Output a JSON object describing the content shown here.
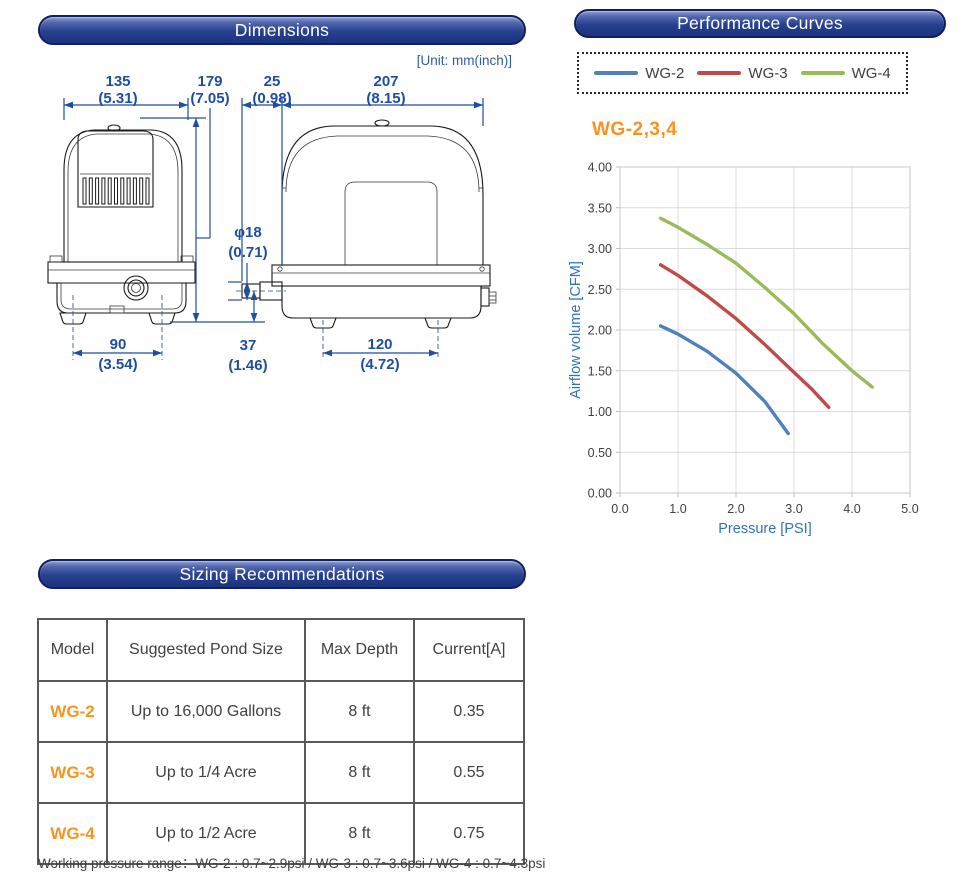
{
  "dimensions_section": {
    "title": "Dimensions",
    "unit_note": "[Unit: mm(inch)]",
    "dims": {
      "front_width": {
        "mm": "135",
        "inch": "(5.31)"
      },
      "height": {
        "mm": "179",
        "inch": "(7.05)"
      },
      "pipe_protrusion": {
        "mm": "25",
        "inch": "(0.98)"
      },
      "side_width": {
        "mm": "207",
        "inch": "(8.15)"
      },
      "pipe_diameter": {
        "mm": "φ18",
        "inch": "(0.71)"
      },
      "front_feet_span": {
        "mm": "90",
        "inch": "(3.54)"
      },
      "pipe_center_height": {
        "mm": "37",
        "inch": "(1.46)"
      },
      "side_feet_span": {
        "mm": "120",
        "inch": "(4.72)"
      }
    }
  },
  "performance_section": {
    "title": "Performance Curves",
    "chart_title": "WG-2,3,4"
  },
  "sizing_section": {
    "title": "Sizing Recommendations",
    "table": {
      "headers": [
        "Model",
        "Suggested Pond Size",
        "Max Depth",
        "Current[A]"
      ],
      "rows": [
        {
          "model": "WG-2",
          "pond_size": "Up to 16,000 Gallons",
          "max_depth": "8 ft",
          "current": "0.35"
        },
        {
          "model": "WG-3",
          "pond_size": "Up to 1/4 Acre",
          "max_depth": "8 ft",
          "current": "0.55"
        },
        {
          "model": "WG-4",
          "pond_size": "Up to 1/2 Acre",
          "max_depth": "8 ft",
          "current": "0.75"
        }
      ]
    },
    "footnote": "Working pressure range：WG-2 : 0.7~2.9psi / WG-3 : 0.7~3.6psi / WG-4 : 0.7~4.3psi"
  },
  "colors": {
    "header_pill_navy": "#1c3380",
    "accent_orange": "#F7941D",
    "dimension_blue": "#1F4EA1",
    "axis_blue": "#2E74B5",
    "gridline_gray": "#DCDCDC"
  },
  "chart_data": {
    "type": "line",
    "title": "WG-2,3,4",
    "xlabel": "Pressure [PSI]",
    "ylabel": "Airflow volume [CFM]",
    "xlim": [
      0,
      5
    ],
    "ylim": [
      0,
      4
    ],
    "x_ticks": [
      "0.0",
      "1.0",
      "2.0",
      "3.0",
      "4.0",
      "5.0"
    ],
    "y_ticks": [
      "0.00",
      "0.50",
      "1.00",
      "1.50",
      "2.00",
      "2.50",
      "3.00",
      "3.50",
      "4.00"
    ],
    "grid": true,
    "legend_position": "top",
    "series": [
      {
        "name": "WG-2",
        "color": "#4F81BD",
        "points": [
          [
            0.7,
            2.05
          ],
          [
            1.0,
            1.95
          ],
          [
            1.5,
            1.74
          ],
          [
            2.0,
            1.47
          ],
          [
            2.5,
            1.12
          ],
          [
            2.9,
            0.73
          ]
        ]
      },
      {
        "name": "WG-3",
        "color": "#BE4B48",
        "points": [
          [
            0.7,
            2.8
          ],
          [
            1.0,
            2.67
          ],
          [
            1.5,
            2.42
          ],
          [
            2.0,
            2.14
          ],
          [
            2.5,
            1.82
          ],
          [
            3.0,
            1.48
          ],
          [
            3.3,
            1.28
          ],
          [
            3.6,
            1.05
          ]
        ]
      },
      {
        "name": "WG-4",
        "color": "#9BBB59",
        "points": [
          [
            0.7,
            3.37
          ],
          [
            1.0,
            3.26
          ],
          [
            1.5,
            3.05
          ],
          [
            2.0,
            2.82
          ],
          [
            2.5,
            2.52
          ],
          [
            3.0,
            2.2
          ],
          [
            3.5,
            1.83
          ],
          [
            4.0,
            1.5
          ],
          [
            4.35,
            1.3
          ]
        ]
      }
    ]
  }
}
